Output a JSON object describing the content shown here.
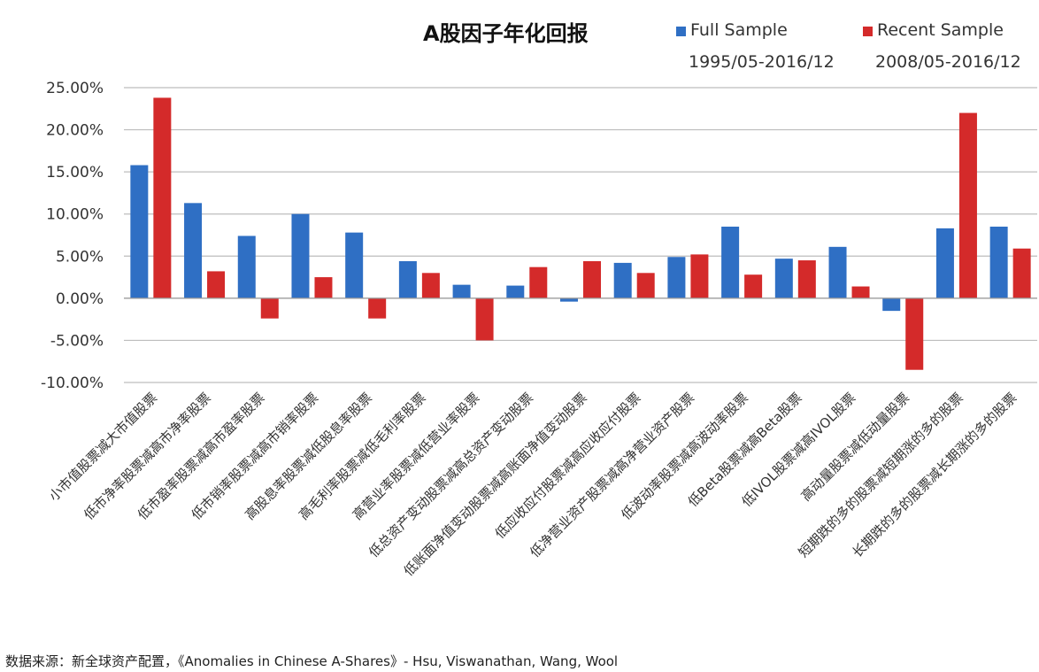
{
  "chart_data": {
    "type": "bar",
    "title": "A股因子年化回报",
    "categories": [
      "小市值股票减大市值股票",
      "低市净率股票减高市净率股票",
      "低市盈率股票减高市盈率股票",
      "低市销率股票减高市销率股票",
      "高股息率股票减低股息率股票",
      "高毛利率股票减低毛利率股票",
      "高营业率股票减低营业率股票",
      "低总资产变动股票减高总资产变动股票",
      "低账面净值变动股票减高账面净值变动股票",
      "低应收应付股票减高应收应付股票",
      "低净营业资产股票减高净营业资产股票",
      "低波动率股票减高波动率股票",
      "低Beta股票减高Beta股票",
      "低IVOL股票减高IVOL股票",
      "高动量股票减低动量股票",
      "短期跌的多的股票减短期涨的多的股票",
      "长期跌的多的股票减长期涨的多的股票"
    ],
    "series": [
      {
        "name": "Full Sample",
        "period": "1995/05-2016/12",
        "color": "#2f6fc4",
        "values": [
          15.8,
          11.3,
          7.4,
          10.0,
          7.8,
          4.4,
          1.6,
          1.5,
          -0.4,
          4.2,
          4.9,
          8.5,
          4.7,
          6.1,
          -1.5,
          8.3,
          8.5
        ]
      },
      {
        "name": "Recent Sample",
        "period": "2008/05-2016/12",
        "color": "#d42a2a",
        "values": [
          23.8,
          3.2,
          -2.4,
          2.5,
          -2.4,
          3.0,
          -5.0,
          3.7,
          4.4,
          3.0,
          5.2,
          2.8,
          4.5,
          1.4,
          -8.5,
          22.0,
          5.9
        ]
      }
    ],
    "ylim": [
      -10,
      25
    ],
    "yticks": [
      "25.00%",
      "20.00%",
      "15.00%",
      "10.00%",
      "5.00%",
      "0.00%",
      "-5.00%",
      "-10.00%"
    ],
    "ytick_values": [
      25,
      20,
      15,
      10,
      5,
      0,
      -5,
      -10
    ],
    "xlabel": "",
    "ylabel": "",
    "grid": true,
    "legend": "top-right"
  },
  "source": "数据来源：新全球资产配置，《Anomalies in Chinese A-Shares》- Hsu, Viswanathan, Wang, Wool"
}
